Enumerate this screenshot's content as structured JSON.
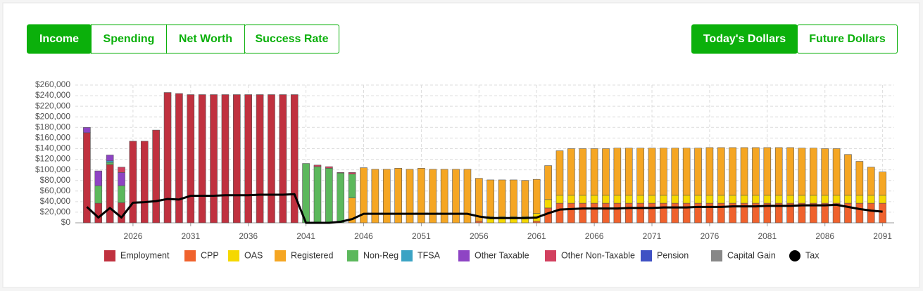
{
  "controls": {
    "views": [
      "Income",
      "Spending",
      "Net Worth",
      "Success Rate"
    ],
    "active_view": 0,
    "dollars": [
      "Today's Dollars",
      "Future Dollars"
    ],
    "active_dollars": 0
  },
  "chart_data": {
    "type": "stacked_bar_line",
    "x": [
      2022,
      2023,
      2024,
      2025,
      2026,
      2027,
      2028,
      2029,
      2030,
      2031,
      2032,
      2033,
      2034,
      2035,
      2036,
      2037,
      2038,
      2039,
      2040,
      2041,
      2042,
      2043,
      2044,
      2045,
      2046,
      2047,
      2048,
      2049,
      2050,
      2051,
      2052,
      2053,
      2054,
      2055,
      2056,
      2057,
      2058,
      2059,
      2060,
      2061,
      2062,
      2063,
      2064,
      2065,
      2066,
      2067,
      2068,
      2069,
      2070,
      2071,
      2072,
      2073,
      2074,
      2075,
      2076,
      2077,
      2078,
      2079,
      2080,
      2081,
      2082,
      2083,
      2084,
      2085,
      2086,
      2087,
      2088,
      2089,
      2090,
      2091
    ],
    "xlim": [
      2021,
      2092
    ],
    "xticks": [
      2026,
      2031,
      2036,
      2041,
      2046,
      2051,
      2056,
      2061,
      2066,
      2071,
      2076,
      2081,
      2086,
      2091
    ],
    "ylim": [
      0,
      260000
    ],
    "yticks": [
      {
        "value": 0,
        "label": "$0"
      },
      {
        "value": 20000,
        "label": "$20,000"
      },
      {
        "value": 40000,
        "label": "$40,000"
      },
      {
        "value": 60000,
        "label": "$60,000"
      },
      {
        "value": 80000,
        "label": "$80,000"
      },
      {
        "value": 100000,
        "label": "$100,000"
      },
      {
        "value": 120000,
        "label": "$120,000"
      },
      {
        "value": 140000,
        "label": "$140,000"
      },
      {
        "value": 160000,
        "label": "$160,000"
      },
      {
        "value": 180000,
        "label": "$180,000"
      },
      {
        "value": 200000,
        "label": "$200,000"
      },
      {
        "value": 220000,
        "label": "$220,000"
      },
      {
        "value": 240000,
        "label": "$240,000"
      },
      {
        "value": 260000,
        "label": "$260,000"
      }
    ],
    "grid": true,
    "legend": "bottom",
    "series": [
      {
        "name": "Employment",
        "color": "#c0313f",
        "values": [
          170000,
          37000,
          110000,
          38000,
          154000,
          154000,
          175000,
          246000,
          244000,
          242000,
          242000,
          242000,
          242000,
          242000,
          242000,
          242000,
          242000,
          242000,
          242000,
          0,
          0,
          0,
          0,
          0,
          0,
          0,
          0,
          0,
          0,
          0,
          0,
          0,
          0,
          0,
          0,
          0,
          0,
          0,
          0,
          0,
          0,
          0,
          0,
          0,
          0,
          0,
          0,
          0,
          0,
          0,
          0,
          0,
          0,
          0,
          0,
          0,
          0,
          0,
          0,
          0,
          0,
          0,
          0,
          0,
          0,
          0,
          0,
          0,
          0,
          0
        ]
      },
      {
        "name": "CPP",
        "color": "#f0622d",
        "values": [
          0,
          0,
          0,
          0,
          0,
          0,
          0,
          0,
          0,
          0,
          0,
          0,
          0,
          0,
          0,
          0,
          0,
          0,
          0,
          0,
          0,
          0,
          0,
          0,
          0,
          0,
          0,
          0,
          0,
          0,
          0,
          0,
          0,
          0,
          3000,
          0,
          0,
          0,
          0,
          3000,
          28000,
          37000,
          37000,
          37000,
          37000,
          37000,
          37000,
          37000,
          37000,
          37000,
          37000,
          37000,
          37000,
          37000,
          37000,
          37000,
          37000,
          37000,
          37000,
          37000,
          37000,
          37000,
          37000,
          37000,
          37000,
          37000,
          37000,
          37000,
          37000,
          37000
        ]
      },
      {
        "name": "OAS",
        "color": "#f5d800",
        "values": [
          0,
          0,
          0,
          0,
          0,
          0,
          0,
          0,
          0,
          0,
          0,
          0,
          0,
          0,
          0,
          0,
          0,
          0,
          0,
          0,
          0,
          0,
          0,
          0,
          0,
          0,
          0,
          0,
          0,
          0,
          0,
          0,
          0,
          0,
          0,
          12000,
          12000,
          12000,
          12000,
          15000,
          16000,
          15000,
          15000,
          15000,
          15000,
          15000,
          15000,
          15000,
          15000,
          15000,
          15000,
          15000,
          15000,
          15000,
          15000,
          15000,
          15000,
          15000,
          15000,
          15000,
          15000,
          15000,
          15000,
          15000,
          15000,
          15000,
          15000,
          15000,
          15000,
          15000
        ]
      },
      {
        "name": "Registered",
        "color": "#f5a623",
        "values": [
          0,
          0,
          0,
          0,
          0,
          0,
          0,
          0,
          0,
          0,
          0,
          0,
          0,
          0,
          0,
          0,
          0,
          0,
          0,
          0,
          0,
          0,
          0,
          47000,
          104000,
          101000,
          101000,
          103000,
          101000,
          103000,
          101000,
          101000,
          101000,
          101000,
          81000,
          69000,
          69000,
          69000,
          68000,
          64000,
          64000,
          84000,
          88000,
          88000,
          88000,
          88000,
          89000,
          89000,
          89000,
          89000,
          89000,
          89000,
          89000,
          89000,
          90000,
          90000,
          90000,
          90000,
          90000,
          90000,
          90000,
          90000,
          89000,
          89000,
          88000,
          88000,
          77000,
          64000,
          53000,
          44000
        ]
      },
      {
        "name": "Non-Reg",
        "color": "#5cb85c",
        "values": [
          0,
          33000,
          4000,
          32000,
          0,
          0,
          0,
          0,
          0,
          0,
          0,
          0,
          0,
          0,
          0,
          0,
          0,
          0,
          0,
          112000,
          106000,
          103000,
          94000,
          45000,
          0,
          0,
          0,
          0,
          0,
          0,
          0,
          0,
          0,
          0,
          0,
          0,
          0,
          0,
          0,
          0,
          0,
          0,
          0,
          0,
          0,
          0,
          0,
          0,
          0,
          0,
          0,
          0,
          0,
          0,
          0,
          0,
          0,
          0,
          0,
          0,
          0,
          0,
          0,
          0,
          0,
          0,
          0,
          0,
          0,
          0
        ]
      },
      {
        "name": "TFSA",
        "color": "#3ba3c4",
        "values": [
          0,
          0,
          3000,
          0,
          0,
          0,
          0,
          0,
          0,
          0,
          0,
          0,
          0,
          0,
          0,
          0,
          0,
          0,
          0,
          0,
          0,
          0,
          0,
          0,
          0,
          0,
          0,
          0,
          0,
          0,
          0,
          0,
          0,
          0,
          0,
          0,
          0,
          0,
          0,
          0,
          0,
          0,
          0,
          0,
          0,
          0,
          0,
          0,
          0,
          0,
          0,
          0,
          0,
          0,
          0,
          0,
          0,
          0,
          0,
          0,
          0,
          0,
          0,
          0,
          0,
          0,
          0,
          0,
          0,
          0
        ]
      },
      {
        "name": "Other Taxable",
        "color": "#8e44c4",
        "values": [
          10000,
          28000,
          11000,
          25000,
          0,
          0,
          0,
          0,
          0,
          0,
          0,
          0,
          0,
          0,
          0,
          0,
          0,
          0,
          0,
          0,
          0,
          0,
          0,
          0,
          0,
          0,
          0,
          0,
          0,
          0,
          0,
          0,
          0,
          0,
          0,
          0,
          0,
          0,
          0,
          0,
          0,
          0,
          0,
          0,
          0,
          0,
          0,
          0,
          0,
          0,
          0,
          0,
          0,
          0,
          0,
          0,
          0,
          0,
          0,
          0,
          0,
          0,
          0,
          0,
          0,
          0,
          0,
          0,
          0,
          0
        ]
      },
      {
        "name": "Other Non-Taxable",
        "color": "#d2405f",
        "values": [
          0,
          0,
          0,
          10000,
          0,
          0,
          0,
          0,
          0,
          0,
          0,
          0,
          0,
          0,
          0,
          0,
          0,
          0,
          0,
          0,
          3000,
          3000,
          1000,
          3000,
          0,
          0,
          0,
          0,
          0,
          0,
          0,
          0,
          0,
          0,
          0,
          0,
          0,
          0,
          0,
          0,
          0,
          0,
          0,
          0,
          0,
          0,
          0,
          0,
          0,
          0,
          0,
          0,
          0,
          0,
          0,
          0,
          0,
          0,
          0,
          0,
          0,
          0,
          0,
          0,
          0,
          0,
          0,
          0,
          0,
          0
        ]
      },
      {
        "name": "Pension",
        "color": "#3f51c4",
        "values": [
          0,
          0,
          0,
          0,
          0,
          0,
          0,
          0,
          0,
          0,
          0,
          0,
          0,
          0,
          0,
          0,
          0,
          0,
          0,
          0,
          0,
          0,
          0,
          0,
          0,
          0,
          0,
          0,
          0,
          0,
          0,
          0,
          0,
          0,
          0,
          0,
          0,
          0,
          0,
          0,
          0,
          0,
          0,
          0,
          0,
          0,
          0,
          0,
          0,
          0,
          0,
          0,
          0,
          0,
          0,
          0,
          0,
          0,
          0,
          0,
          0,
          0,
          0,
          0,
          0,
          0,
          0,
          0,
          0,
          0
        ]
      },
      {
        "name": "Capital Gain",
        "color": "#888888",
        "values": [
          0,
          0,
          0,
          0,
          0,
          0,
          0,
          0,
          0,
          0,
          0,
          0,
          0,
          0,
          0,
          0,
          0,
          0,
          0,
          0,
          0,
          0,
          0,
          0,
          0,
          0,
          0,
          0,
          0,
          0,
          0,
          0,
          0,
          0,
          0,
          0,
          0,
          0,
          0,
          0,
          0,
          0,
          0,
          0,
          0,
          0,
          0,
          0,
          0,
          0,
          0,
          0,
          0,
          0,
          0,
          0,
          0,
          0,
          0,
          0,
          0,
          0,
          0,
          0,
          0,
          0,
          0,
          0,
          0,
          0
        ]
      },
      {
        "name": "Tax",
        "color": "#000000",
        "kind": "line",
        "values": [
          30000,
          10000,
          28000,
          10000,
          38000,
          39000,
          41000,
          45000,
          44000,
          51000,
          51000,
          51000,
          52000,
          52000,
          52000,
          53000,
          53000,
          53000,
          54000,
          0,
          0,
          0,
          2000,
          7000,
          17000,
          17000,
          17000,
          17000,
          17000,
          17000,
          17000,
          17000,
          17000,
          17000,
          12000,
          9000,
          9000,
          9000,
          9000,
          10000,
          18000,
          25000,
          26000,
          27000,
          27000,
          27000,
          27000,
          28000,
          28000,
          28000,
          29000,
          29000,
          29000,
          30000,
          30000,
          30000,
          31000,
          31000,
          31000,
          32000,
          32000,
          32000,
          33000,
          33000,
          33000,
          34000,
          30000,
          26000,
          23000,
          21000
        ]
      }
    ]
  }
}
